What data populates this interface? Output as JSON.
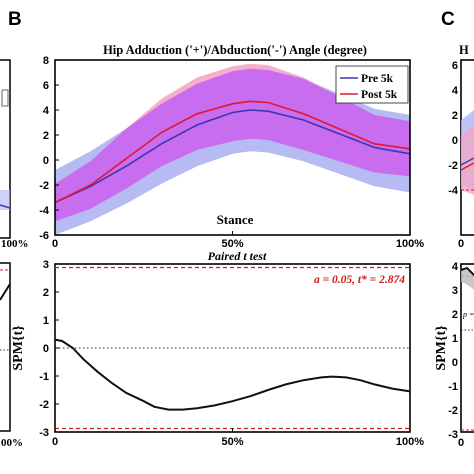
{
  "panel_labels": {
    "left": "B",
    "right": "C"
  },
  "edge_text": {
    "left_top_tick": "100%",
    "left_bottom_tick": "00%",
    "right_title_fragment": "H",
    "right_top_ticks": [
      "6",
      "4",
      "2",
      "0",
      "-2",
      "-4"
    ],
    "right_top_axis_start": "0",
    "right_bottom_ticks": [
      "4",
      "3",
      "2",
      "1",
      "0",
      "-1",
      "-2",
      "-3"
    ],
    "right_bottom_axis_start": "0",
    "right_bottom_ylabel": "SPM{t}",
    "right_p_fragment": "p ="
  },
  "chart_data": [
    {
      "type": "area",
      "title": "Hip Adduction ('+')/Abduction('-') Angle (degree)",
      "xlabel": "Stance",
      "ylabel": "",
      "xlim": [
        0,
        100
      ],
      "ylim": [
        -6,
        8
      ],
      "yticks": [
        -6,
        -4,
        -2,
        0,
        2,
        4,
        6,
        8
      ],
      "xticks": [
        "0",
        "50%",
        "100%"
      ],
      "legend": {
        "placement": "top-right",
        "entries": [
          "Pre 5k",
          "Post 5k"
        ]
      },
      "grid": false,
      "colors": {
        "pre_line": "#3838b0",
        "pre_band": "#aeb4f2",
        "post_line": "#e01830",
        "post_band": "#f4a6c4",
        "overlap": "#c86cf0"
      },
      "x": [
        0,
        10,
        20,
        30,
        40,
        50,
        55,
        60,
        70,
        80,
        90,
        100
      ],
      "series": [
        {
          "name": "Pre 5k",
          "mean": [
            -3.4,
            -2.1,
            -0.5,
            1.3,
            2.8,
            3.8,
            4.0,
            3.9,
            3.2,
            2.1,
            1.0,
            0.5
          ],
          "sd": [
            2.6,
            2.8,
            3.0,
            3.2,
            3.3,
            3.3,
            3.3,
            3.3,
            3.3,
            3.2,
            3.1,
            3.1
          ]
        },
        {
          "name": "Post 5k",
          "mean": [
            -3.4,
            -2.0,
            0.1,
            2.2,
            3.7,
            4.5,
            4.7,
            4.6,
            3.7,
            2.5,
            1.3,
            0.9
          ],
          "sd": [
            1.5,
            1.9,
            2.4,
            2.7,
            2.9,
            3.0,
            3.0,
            3.0,
            2.9,
            2.6,
            2.3,
            2.2
          ]
        }
      ]
    },
    {
      "type": "line",
      "title": "Paired t test",
      "xlabel": "",
      "ylabel": "SPM{t}",
      "xlim": [
        0,
        100
      ],
      "ylim": [
        -3,
        3
      ],
      "yticks": [
        -3,
        -2,
        -1,
        0,
        1,
        2,
        3
      ],
      "xticks": [
        "0",
        "50%",
        "100%"
      ],
      "annotation": "a = 0.05, t* = 2.874",
      "threshold": 2.874,
      "grid": false,
      "colors": {
        "line": "#111111",
        "threshold": "#d11a1a",
        "zero": "#222222"
      },
      "x": [
        0,
        2,
        5,
        8,
        12,
        16,
        20,
        25,
        28,
        32,
        36,
        40,
        45,
        50,
        55,
        60,
        65,
        70,
        75,
        78,
        82,
        86,
        90,
        95,
        100
      ],
      "y": [
        0.3,
        0.25,
        0.0,
        -0.4,
        -0.85,
        -1.25,
        -1.6,
        -1.9,
        -2.1,
        -2.2,
        -2.2,
        -2.15,
        -2.05,
        -1.9,
        -1.72,
        -1.5,
        -1.3,
        -1.15,
        -1.05,
        -1.02,
        -1.05,
        -1.15,
        -1.3,
        -1.45,
        -1.55
      ]
    }
  ]
}
